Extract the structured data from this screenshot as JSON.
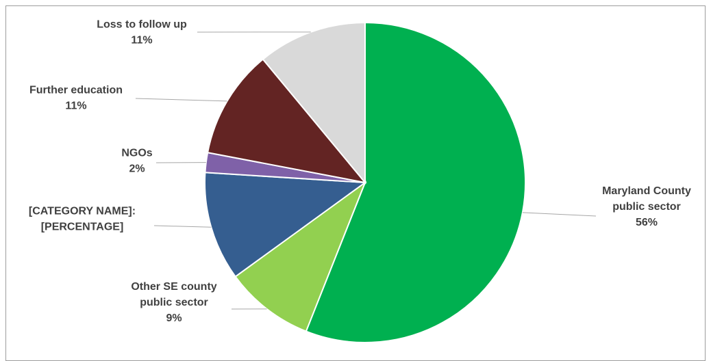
{
  "chart_data": {
    "type": "pie",
    "title": "",
    "slices": [
      {
        "label": "Maryland County public sector",
        "label_lines": [
          "Maryland County",
          "public sector"
        ],
        "percent_text": "56%",
        "value": 56,
        "color": "#00b050"
      },
      {
        "label": "Other SE county public sector",
        "label_lines": [
          "Other SE county",
          "public sector"
        ],
        "percent_text": "9%",
        "value": 9,
        "color": "#92d050"
      },
      {
        "label": "[CATEGORY NAME]: [PERCENTAGE]",
        "label_lines": [
          "[CATEGORY NAME]:",
          "[PERCENTAGE]"
        ],
        "percent_text": "",
        "value": 11,
        "color": "#355e90"
      },
      {
        "label": "NGOs",
        "label_lines": [
          "NGOs"
        ],
        "percent_text": "2%",
        "value": 2,
        "color": "#7f61a8"
      },
      {
        "label": "Further education",
        "label_lines": [
          "Further education"
        ],
        "percent_text": "11%",
        "value": 11,
        "color": "#632423"
      },
      {
        "label": "Loss to follow up",
        "label_lines": [
          "Loss to follow up"
        ],
        "percent_text": "11%",
        "value": 11,
        "color": "#d9d9d9"
      }
    ],
    "start_angle_deg": 0,
    "direction": "clockwise",
    "legend": "none"
  }
}
